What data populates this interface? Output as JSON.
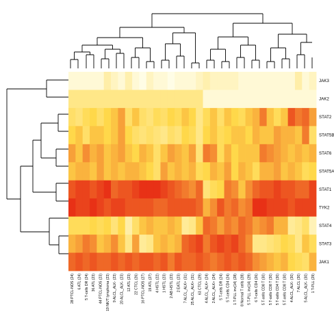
{
  "chart_data": {
    "type": "heatmap",
    "rows": [
      "JAK3",
      "JAK2",
      "STAT2",
      "STAT5B",
      "STAT6",
      "STAT5A",
      "STAT1",
      "TYK2",
      "STAT4",
      "STAT3",
      "JAK1"
    ],
    "columns": [
      "28 PTCL-NOS (24)",
      "6 ATL (24)",
      "5 T-cells DR (24)",
      "36 ATL (23)",
      "44 PTCL-NOS (23)",
      "19 NK/T lymphoma (23)",
      "9 ALCL_ALK- (23)",
      "20 ALCL_ALK- (23)",
      "12 ATL (23)",
      "22 CTCL (26)",
      "16 PTCL-NOS (27)",
      "19 ATL (27)",
      "4 HSTL (22)",
      "1 HSTL (23)",
      "2 AB HSTL (23)",
      "2 EATL (23)",
      "7 ALCL_ALK+ (31)",
      "25 ALCL_ALK+ (31)",
      "63 CTCL (29)",
      "4 ALCL_ALK+ (24)",
      "2 ALCL_ALK+ (24)",
      "5 T-cells DR (24)",
      "5 T-cells CD4 (24)",
      "1 T-PLL inv(14) (28)",
      "8 Normal T cells (28)",
      "5 T-PLL inv(14) (29)",
      "6 T-cells CD4 (26)",
      "5 T-cells CD8 T (30)",
      "5 T-cells CD8 T (30)",
      "5 T-cells CD4 T (30)",
      "5 T-cells CD8 T (30)",
      "4 ALCL_ALK- (30)",
      "7 ALCL (30)",
      "5 ALCL_ALK- (30)",
      "1 T-PLL (29)"
    ],
    "color_scale": {
      "low": "#fffde6",
      "mid": "#ffd84a",
      "high": "#e51e10"
    },
    "values": [
      [
        0.05,
        0.05,
        0.05,
        0.05,
        0.05,
        0.2,
        0.12,
        0.05,
        0.18,
        0.05,
        0.0,
        0.12,
        0.05,
        0.05,
        0.0,
        0.05,
        0.05,
        0.05,
        0.12,
        0.18,
        0.12,
        0.12,
        0.12,
        0.12,
        0.05,
        0.05,
        0.05,
        0.05,
        0.05,
        0.05,
        0.05,
        0.05,
        0.2,
        0.05,
        0.12
      ],
      [
        0.3,
        0.3,
        0.3,
        0.3,
        0.3,
        0.3,
        0.3,
        0.3,
        0.3,
        0.3,
        0.3,
        0.3,
        0.3,
        0.3,
        0.3,
        0.3,
        0.3,
        0.3,
        0.3,
        0.05,
        0.05,
        0.05,
        0.05,
        0.05,
        0.05,
        0.05,
        0.05,
        0.05,
        0.05,
        0.05,
        0.05,
        0.05,
        0.05,
        0.05,
        0.05
      ],
      [
        0.4,
        0.35,
        0.45,
        0.5,
        0.4,
        0.5,
        0.55,
        0.65,
        0.4,
        0.55,
        0.4,
        0.35,
        0.45,
        0.4,
        0.5,
        0.45,
        0.55,
        0.5,
        0.3,
        0.45,
        0.55,
        0.4,
        0.55,
        0.5,
        0.45,
        0.55,
        0.6,
        0.75,
        0.55,
        0.45,
        0.55,
        0.85,
        0.75,
        0.8,
        0.65
      ],
      [
        0.5,
        0.55,
        0.4,
        0.55,
        0.55,
        0.5,
        0.55,
        0.65,
        0.5,
        0.4,
        0.35,
        0.4,
        0.35,
        0.3,
        0.4,
        0.35,
        0.5,
        0.45,
        0.3,
        0.5,
        0.55,
        0.45,
        0.5,
        0.55,
        0.55,
        0.5,
        0.6,
        0.55,
        0.55,
        0.65,
        0.6,
        0.6,
        0.55,
        0.75,
        0.4
      ],
      [
        0.65,
        0.55,
        0.7,
        0.6,
        0.65,
        0.55,
        0.6,
        0.65,
        0.55,
        0.5,
        0.6,
        0.55,
        0.4,
        0.55,
        0.65,
        0.6,
        0.55,
        0.65,
        0.35,
        0.75,
        0.7,
        0.45,
        0.6,
        0.5,
        0.55,
        0.55,
        0.55,
        0.75,
        0.7,
        0.65,
        0.6,
        0.55,
        0.6,
        0.55,
        0.6
      ],
      [
        0.55,
        0.6,
        0.6,
        0.55,
        0.65,
        0.55,
        0.6,
        0.55,
        0.6,
        0.6,
        0.55,
        0.5,
        0.4,
        0.65,
        0.55,
        0.6,
        0.55,
        0.6,
        0.45,
        0.5,
        0.6,
        0.55,
        0.65,
        0.5,
        0.6,
        0.55,
        0.45,
        0.6,
        0.6,
        0.65,
        0.55,
        0.6,
        0.55,
        0.45,
        0.5
      ],
      [
        0.85,
        0.9,
        0.9,
        0.85,
        0.9,
        0.95,
        0.8,
        0.85,
        0.85,
        0.9,
        0.95,
        0.95,
        0.95,
        0.9,
        0.85,
        0.8,
        0.75,
        0.7,
        0.8,
        0.35,
        0.45,
        0.5,
        0.75,
        0.7,
        0.55,
        0.7,
        0.8,
        0.85,
        0.85,
        0.9,
        0.85,
        0.85,
        0.8,
        0.8,
        0.9
      ],
      [
        0.95,
        0.9,
        0.9,
        0.95,
        0.9,
        0.85,
        0.9,
        0.9,
        0.85,
        0.85,
        0.85,
        0.85,
        0.8,
        0.8,
        0.85,
        0.85,
        0.85,
        0.85,
        0.8,
        0.6,
        0.7,
        0.85,
        0.75,
        0.8,
        0.7,
        0.75,
        0.95,
        0.95,
        0.9,
        0.9,
        0.9,
        0.85,
        0.9,
        0.9,
        0.9
      ],
      [
        0.45,
        0.45,
        0.45,
        0.5,
        0.45,
        0.5,
        0.35,
        0.5,
        0.2,
        0.4,
        0.55,
        0.6,
        0.55,
        0.55,
        0.6,
        0.55,
        0.25,
        0.3,
        0.55,
        0.8,
        0.75,
        0.65,
        0.75,
        0.7,
        0.8,
        0.75,
        0.65,
        0.7,
        0.75,
        0.6,
        0.6,
        0.25,
        0.3,
        0.4,
        0.15
      ],
      [
        0.6,
        0.65,
        0.75,
        0.7,
        0.55,
        0.6,
        0.7,
        0.55,
        0.3,
        0.65,
        0.25,
        0.3,
        0.55,
        0.6,
        0.55,
        0.6,
        0.8,
        0.85,
        0.9,
        0.75,
        0.85,
        0.9,
        0.85,
        0.9,
        0.8,
        0.7,
        0.3,
        0.3,
        0.35,
        0.4,
        0.5,
        0.45,
        0.3,
        0.55,
        0.45
      ],
      [
        0.8,
        0.85,
        0.8,
        0.85,
        0.8,
        0.8,
        0.85,
        0.8,
        0.85,
        0.8,
        0.85,
        0.85,
        0.8,
        0.85,
        0.75,
        0.85,
        0.8,
        0.8,
        0.85,
        0.8,
        0.75,
        0.8,
        0.85,
        0.8,
        0.85,
        0.8,
        0.7,
        0.65,
        0.6,
        0.55,
        0.6,
        0.5,
        0.45,
        0.4,
        0.6
      ]
    ]
  }
}
